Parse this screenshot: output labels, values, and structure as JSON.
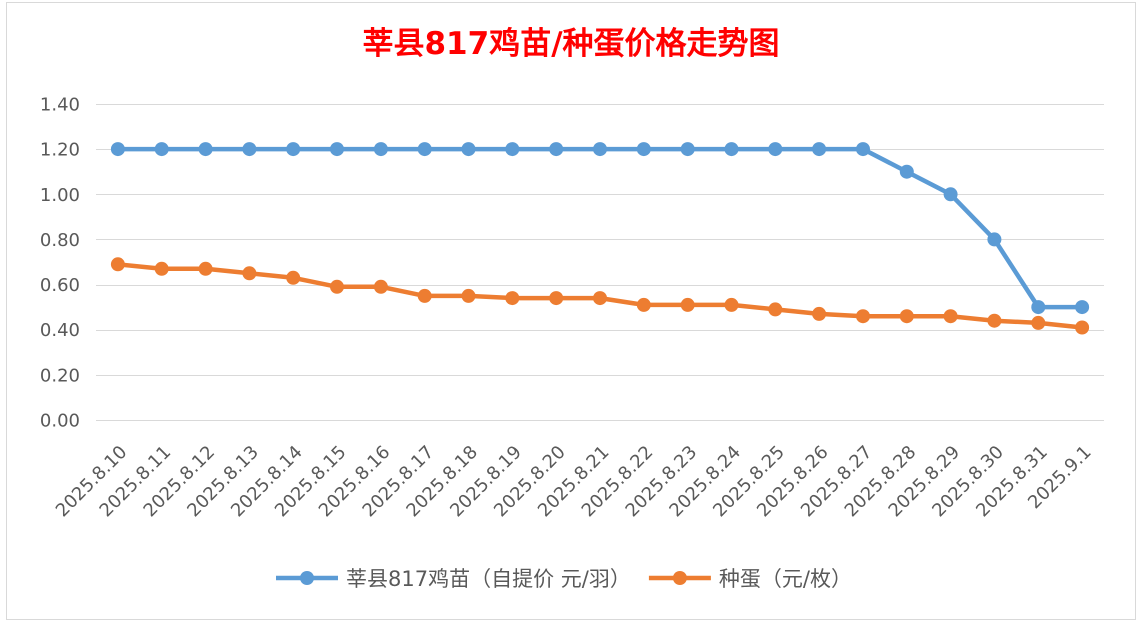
{
  "chart_data": {
    "type": "line",
    "title": "莘县817鸡苗/种蛋价格走势图",
    "title_color": "#FF0000",
    "categories": [
      "2025.8.10",
      "2025.8.11",
      "2025.8.12",
      "2025.8.13",
      "2025.8.14",
      "2025.8.15",
      "2025.8.16",
      "2025.8.17",
      "2025.8.18",
      "2025.8.19",
      "2025.8.20",
      "2025.8.21",
      "2025.8.22",
      "2025.8.23",
      "2025.8.24",
      "2025.8.25",
      "2025.8.26",
      "2025.8.27",
      "2025.8.28",
      "2025.8.29",
      "2025.8.30",
      "2025.8.31",
      "2025.9.1"
    ],
    "series": [
      {
        "name": "莘县817鸡苗（自提价 元/羽）",
        "color": "#5B9BD5",
        "values": [
          1.2,
          1.2,
          1.2,
          1.2,
          1.2,
          1.2,
          1.2,
          1.2,
          1.2,
          1.2,
          1.2,
          1.2,
          1.2,
          1.2,
          1.2,
          1.2,
          1.2,
          1.2,
          1.1,
          1.0,
          0.8,
          0.5,
          0.5
        ]
      },
      {
        "name": "种蛋（元/枚）",
        "color": "#ED7D31",
        "values": [
          0.69,
          0.67,
          0.67,
          0.65,
          0.63,
          0.59,
          0.59,
          0.55,
          0.55,
          0.54,
          0.54,
          0.54,
          0.51,
          0.51,
          0.51,
          0.49,
          0.47,
          0.46,
          0.46,
          0.46,
          0.44,
          0.43,
          0.41
        ]
      }
    ],
    "ylim": [
      0,
      1.4
    ],
    "ytick_labels": [
      "0.00",
      "0.20",
      "0.40",
      "0.60",
      "0.80",
      "1.00",
      "1.20",
      "1.40"
    ],
    "grid": {
      "y": true,
      "x": false
    },
    "markers": true,
    "legend": "bottom",
    "label_color": "#595959",
    "gridline_color": "#D9D9D9"
  }
}
